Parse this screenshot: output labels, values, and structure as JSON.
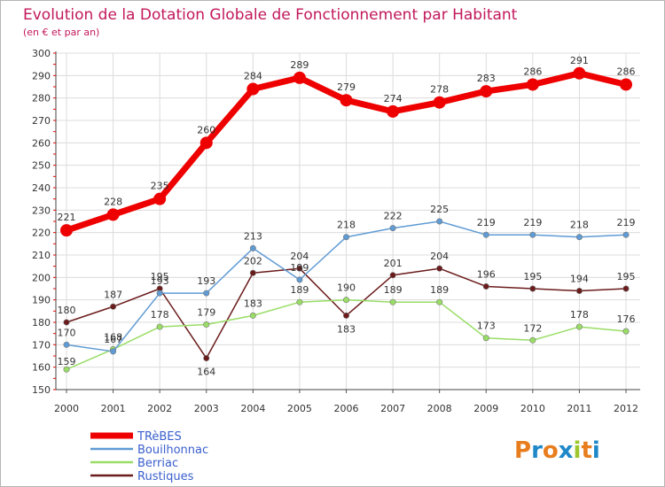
{
  "chart_data": {
    "type": "line",
    "title": "Evolution de la Dotation Globale de Fonctionnement par Habitant",
    "subtitle": "(en € et par an)",
    "xlabel": "",
    "ylabel": "",
    "ylim": [
      150,
      300
    ],
    "yticks": [
      150,
      160,
      170,
      180,
      190,
      200,
      210,
      220,
      230,
      240,
      250,
      260,
      270,
      280,
      290,
      300
    ],
    "categories": [
      "2000",
      "2001",
      "2002",
      "2003",
      "2004",
      "2005",
      "2006",
      "2007",
      "2008",
      "2009",
      "2010",
      "2011",
      "2012"
    ],
    "grid": true,
    "legend_position": "bottom-left",
    "series": [
      {
        "name": "TRèBES",
        "color": "#ee0000",
        "values": [
          221,
          228,
          235,
          260,
          284,
          289,
          279,
          274,
          278,
          283,
          286,
          291,
          286
        ]
      },
      {
        "name": "Bouilhonnac",
        "color": "#5f9bd4",
        "values": [
          170,
          167,
          193,
          193,
          213,
          199,
          218,
          222,
          225,
          219,
          219,
          218,
          219
        ]
      },
      {
        "name": "Berriac",
        "color": "#99dd66",
        "values": [
          159,
          168,
          178,
          179,
          183,
          189,
          190,
          189,
          189,
          173,
          172,
          178,
          176
        ]
      },
      {
        "name": "Rustiques",
        "color": "#6b1b1b",
        "values": [
          180,
          187,
          195,
          164,
          202,
          204,
          183,
          201,
          204,
          196,
          195,
          194,
          195
        ]
      }
    ]
  },
  "logo": {
    "text": "Proxiti"
  }
}
